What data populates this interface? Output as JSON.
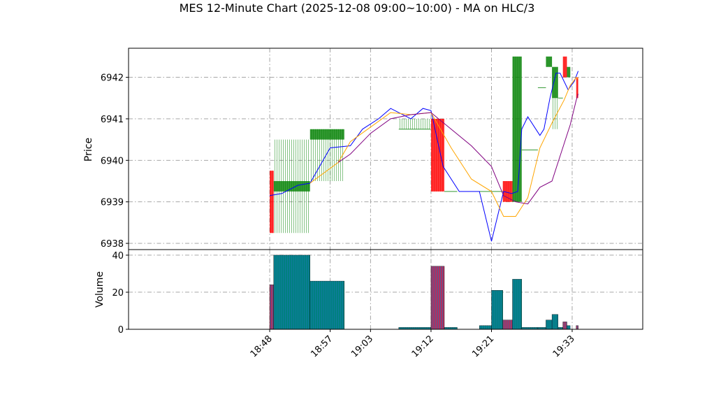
{
  "chart_data": {
    "type": "candlestick",
    "title": "MES 12-Minute Chart (2025-12-08 09:00~10:00) - MA on HLC/3",
    "price_panel": {
      "ylabel": "Price",
      "ylim": [
        6937.85,
        6942.7
      ],
      "yticks": [
        6938,
        6939,
        6940,
        6941,
        6942
      ],
      "grid": true
    },
    "volume_panel": {
      "ylabel": "Volume",
      "ylim": [
        0,
        43
      ],
      "yticks": [
        0,
        20,
        40
      ],
      "grid": true
    },
    "x_axis": {
      "xlim": [
        18.45,
        19.725
      ],
      "tick_positions": [
        18.8,
        18.95,
        19.05,
        19.2,
        19.35,
        19.55
      ],
      "tick_labels": [
        "18:48",
        "18:57",
        "19:03",
        "19:12",
        "19:21",
        "19:33"
      ]
    },
    "candles": [
      {
        "x0": 18.8,
        "x1": 18.81,
        "open": 6939.75,
        "high": 6939.75,
        "low": 6938.25,
        "close": 6938.25,
        "volume": 24
      },
      {
        "x0": 18.81,
        "x1": 18.9,
        "open": 6939.25,
        "high": 6940.5,
        "low": 6938.25,
        "close": 6939.5,
        "volume": 40
      },
      {
        "x0": 18.9,
        "x1": 18.985,
        "open": 6940.5,
        "high": 6940.75,
        "low": 6939.5,
        "close": 6940.75,
        "volume": 26
      },
      {
        "x0": 19.12,
        "x1": 19.2,
        "open": 6940.75,
        "high": 6941.0,
        "low": 6940.75,
        "close": 6940.75,
        "volume": 1
      },
      {
        "x0": 19.2,
        "x1": 19.233,
        "open": 6941.0,
        "high": 6941.0,
        "low": 6939.25,
        "close": 6939.25,
        "volume": 34
      },
      {
        "x0": 19.233,
        "x1": 19.265,
        "open": 6939.25,
        "high": 6939.25,
        "low": 6939.25,
        "close": 6939.25,
        "volume": 1
      },
      {
        "x0": 19.32,
        "x1": 19.35,
        "open": 6939.25,
        "high": 6939.25,
        "low": 6939.25,
        "close": 6939.25,
        "volume": 2
      },
      {
        "x0": 19.35,
        "x1": 19.378,
        "open": 6939.25,
        "high": 6939.25,
        "low": 6939.25,
        "close": 6939.25,
        "volume": 21
      },
      {
        "x0": 19.378,
        "x1": 19.402,
        "open": 6939.5,
        "high": 6939.5,
        "low": 6939.0,
        "close": 6939.0,
        "volume": 5
      },
      {
        "x0": 19.402,
        "x1": 19.425,
        "open": 6939.0,
        "high": 6942.5,
        "low": 6939.0,
        "close": 6942.5,
        "volume": 27
      },
      {
        "x0": 19.425,
        "x1": 19.465,
        "open": 6940.25,
        "high": 6940.25,
        "low": 6940.25,
        "close": 6940.25,
        "volume": 1
      },
      {
        "x0": 19.465,
        "x1": 19.485,
        "open": 6941.75,
        "high": 6941.75,
        "low": 6941.75,
        "close": 6941.75,
        "volume": 1
      },
      {
        "x0": 19.485,
        "x1": 19.5,
        "open": 6942.25,
        "high": 6942.5,
        "low": 6942.25,
        "close": 6942.5,
        "volume": 5
      },
      {
        "x0": 19.5,
        "x1": 19.515,
        "open": 6941.5,
        "high": 6942.25,
        "low": 6940.75,
        "close": 6942.25,
        "volume": 8
      },
      {
        "x0": 19.515,
        "x1": 19.527,
        "open": 6941.5,
        "high": 6941.5,
        "low": 6941.5,
        "close": 6941.5,
        "volume": 1
      },
      {
        "x0": 19.527,
        "x1": 19.537,
        "open": 6942.5,
        "high": 6942.5,
        "low": 6942.0,
        "close": 6942.0,
        "volume": 4
      },
      {
        "x0": 19.537,
        "x1": 19.545,
        "open": 6942.0,
        "high": 6942.25,
        "low": 6942.0,
        "close": 6942.25,
        "volume": 2
      },
      {
        "x0": 19.56,
        "x1": 19.565,
        "open": 6942.0,
        "high": 6942.0,
        "low": 6941.5,
        "close": 6941.5,
        "volume": 2
      }
    ],
    "series": [
      {
        "color": "#0000ff",
        "x": [
          18.8,
          18.83,
          18.87,
          18.9,
          18.95,
          19.0,
          19.03,
          19.07,
          19.1,
          19.15,
          19.18,
          19.2,
          19.23,
          19.27,
          19.32,
          19.35,
          19.38,
          19.4,
          19.415,
          19.425,
          19.44,
          19.47,
          19.48,
          19.495,
          19.51,
          19.52,
          19.54,
          19.555,
          19.565
        ],
        "values": [
          6939.15,
          6939.2,
          6939.4,
          6939.45,
          6940.3,
          6940.35,
          6940.75,
          6941.0,
          6941.25,
          6941.0,
          6941.25,
          6941.2,
          6939.85,
          6939.25,
          6939.25,
          6938.05,
          6939.25,
          6939.2,
          6939.25,
          6940.75,
          6941.05,
          6940.6,
          6940.75,
          6941.5,
          6942.1,
          6942.1,
          6941.7,
          6941.9,
          6942.15
        ]
      },
      {
        "color": "#ffa500",
        "x": [
          18.9,
          18.97,
          19.0,
          19.05,
          19.1,
          19.15,
          19.2,
          19.25,
          19.3,
          19.35,
          19.38,
          19.41,
          19.44,
          19.47,
          19.5,
          19.53,
          19.545,
          19.56,
          19.565
        ],
        "values": [
          6939.45,
          6939.95,
          6940.45,
          6940.8,
          6941.15,
          6941.1,
          6941.15,
          6940.3,
          6939.55,
          6939.25,
          6938.65,
          6938.65,
          6939.1,
          6940.3,
          6940.9,
          6941.45,
          6941.8,
          6942.0,
          6941.95
        ]
      },
      {
        "color": "#800080",
        "x": [
          18.97,
          19.0,
          19.05,
          19.1,
          19.15,
          19.2,
          19.25,
          19.3,
          19.35,
          19.38,
          19.41,
          19.44,
          19.47,
          19.5,
          19.53,
          19.545,
          19.56,
          19.565
        ],
        "values": [
          6939.95,
          6940.15,
          6940.65,
          6941.0,
          6941.1,
          6941.15,
          6940.75,
          6940.35,
          6939.85,
          6939.15,
          6939.0,
          6938.95,
          6939.35,
          6939.5,
          6940.4,
          6940.85,
          6941.45,
          6941.6
        ]
      }
    ]
  }
}
